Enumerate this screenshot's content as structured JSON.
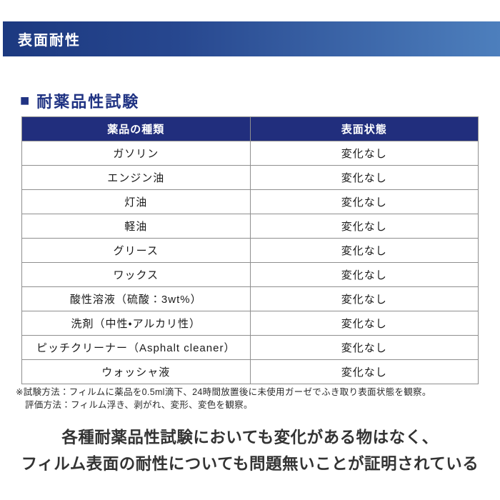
{
  "banner": {
    "title": "表面耐性",
    "gradient_left": "#1c3980",
    "gradient_right": "#4d7fbd"
  },
  "section": {
    "bullet": "■",
    "title": "耐薬品性試験",
    "color": "#203383"
  },
  "table": {
    "header_bg": "#212e7d",
    "headers": {
      "chemical": "薬品の種類",
      "state": "表面状態"
    },
    "rows": [
      {
        "chemical": "ガソリン",
        "state": "変化なし"
      },
      {
        "chemical": "エンジン油",
        "state": "変化なし"
      },
      {
        "chemical": "灯油",
        "state": "変化なし"
      },
      {
        "chemical": "軽油",
        "state": "変化なし"
      },
      {
        "chemical": "グリース",
        "state": "変化なし"
      },
      {
        "chemical": "ワックス",
        "state": "変化なし"
      },
      {
        "chemical": "酸性溶液（硫酸：3wt%）",
        "state": "変化なし"
      },
      {
        "chemical": "洗剤（中性・アルカリ性）",
        "state": "変化なし"
      },
      {
        "chemical": "ピッチクリーナー（Asphalt cleaner）",
        "state": "変化なし"
      },
      {
        "chemical": "ウォッシャ液",
        "state": "変化なし"
      }
    ]
  },
  "footnote": {
    "line1": "※試験方法：フィルムに薬品を0.5ml滴下、24時間放置後に未使用ガーゼでふき取り表面状態を観察。",
    "line2": "評価方法：フィルム浮き、剥がれ、変形、変色を観察。"
  },
  "conclusion": {
    "line1": "各種耐薬品性試験においても変化がある物はなく、",
    "line2": "フィルム表面の耐性についても問題無いことが証明されている"
  }
}
